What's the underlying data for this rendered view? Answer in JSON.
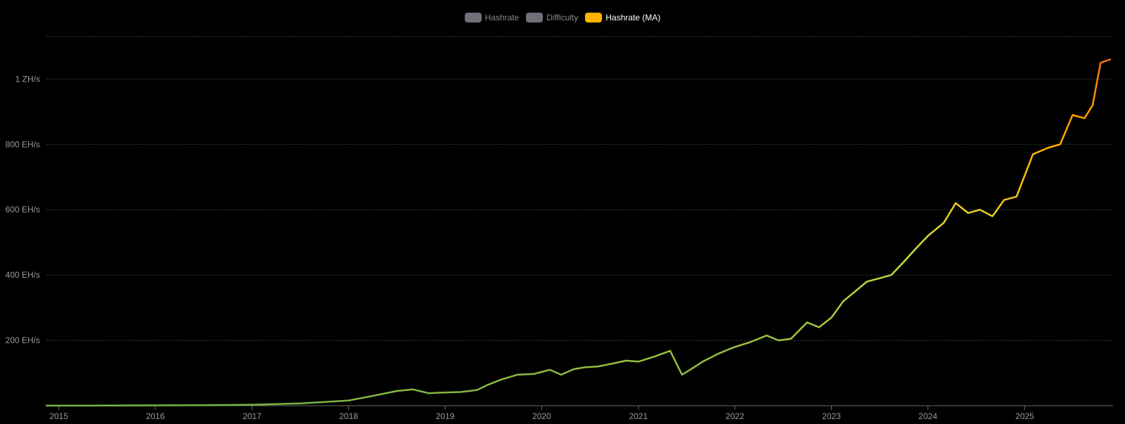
{
  "legend": [
    {
      "label": "Hashrate",
      "color": "#6f7078",
      "active": false
    },
    {
      "label": "Difficulty",
      "color": "#6f7078",
      "active": false
    },
    {
      "label": "Hashrate (MA)",
      "color": "#ffb300",
      "active": true
    }
  ],
  "chart_data": {
    "type": "line",
    "title": "",
    "xlabel": "",
    "ylabel": "",
    "x_ticks": [
      "2015",
      "2016",
      "2017",
      "2018",
      "2019",
      "2020",
      "2021",
      "2022",
      "2023",
      "2024",
      "2025"
    ],
    "y_ticks": [
      "200 EH/s",
      "400 EH/s",
      "600 EH/s",
      "800 EH/s",
      "1 ZH/s"
    ],
    "y_tick_values": [
      200,
      400,
      600,
      800,
      1000
    ],
    "xlim": [
      "2014-11-15",
      "2025-12-01"
    ],
    "ylim": [
      0,
      1130
    ],
    "grid": true,
    "legend_position": "top-center",
    "series": [
      {
        "name": "Hashrate (MA)",
        "color_scale": [
          "#7cb342",
          "#cddc39",
          "#ffc107",
          "#ff9800",
          "#ff5722"
        ],
        "x": [
          "2014-11-15",
          "2015-06-01",
          "2016-01-01",
          "2016-07-01",
          "2017-01-01",
          "2017-07-01",
          "2018-01-01",
          "2018-04-01",
          "2018-07-01",
          "2018-09-01",
          "2018-11-01",
          "2018-12-15",
          "2019-03-01",
          "2019-05-01",
          "2019-06-15",
          "2019-08-01",
          "2019-10-01",
          "2019-12-01",
          "2020-02-01",
          "2020-03-15",
          "2020-05-01",
          "2020-06-15",
          "2020-08-01",
          "2020-10-01",
          "2020-11-15",
          "2021-01-01",
          "2021-03-01",
          "2021-05-01",
          "2021-06-15",
          "2021-07-15",
          "2021-09-01",
          "2021-11-01",
          "2022-01-01",
          "2022-03-01",
          "2022-05-01",
          "2022-06-15",
          "2022-08-01",
          "2022-10-01",
          "2022-11-15",
          "2023-01-01",
          "2023-02-15",
          "2023-04-01",
          "2023-05-15",
          "2023-07-01",
          "2023-08-15",
          "2023-10-01",
          "2023-11-15",
          "2024-01-01",
          "2024-03-01",
          "2024-04-15",
          "2024-06-01",
          "2024-07-15",
          "2024-09-01",
          "2024-10-15",
          "2024-12-01",
          "2025-02-01",
          "2025-04-01",
          "2025-05-15",
          "2025-07-01",
          "2025-08-15",
          "2025-09-15",
          "2025-10-15",
          "2025-11-20"
        ],
        "values": [
          0.3,
          0.4,
          1,
          1.5,
          3,
          7,
          16,
          30,
          45,
          50,
          38,
          40,
          42,
          48,
          65,
          80,
          95,
          97,
          110,
          95,
          112,
          118,
          120,
          130,
          138,
          135,
          150,
          168,
          95,
          110,
          135,
          160,
          180,
          195,
          215,
          200,
          205,
          255,
          240,
          270,
          320,
          350,
          380,
          390,
          400,
          440,
          480,
          520,
          560,
          620,
          590,
          600,
          580,
          630,
          640,
          770,
          790,
          800,
          890,
          880,
          920,
          1050,
          1060
        ]
      }
    ]
  }
}
